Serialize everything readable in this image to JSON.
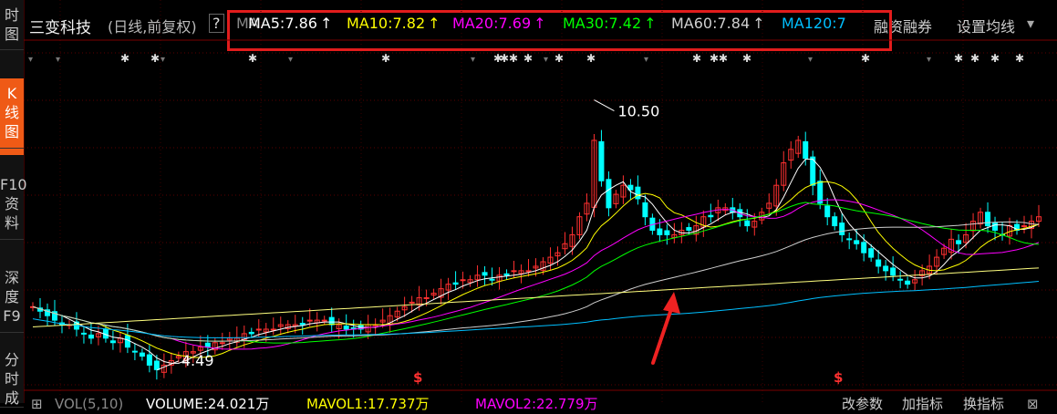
{
  "sidebar": {
    "tabs": [
      {
        "label": "时\n图",
        "active": false
      },
      {
        "label": "K\n线\n图",
        "active": true
      },
      {
        "label": "F10\n资\n料",
        "active": false
      },
      {
        "label": "深\n度\nF9",
        "active": false
      },
      {
        "label": "分\n时\n成",
        "active": false
      }
    ]
  },
  "header": {
    "stock_name": "三变科技",
    "period_info": "(日线,前复权)",
    "help_label": "?",
    "ma_label": "MA",
    "ma_values": [
      {
        "label": "MA5:7.86",
        "arrow": "↑",
        "color": "#ffffff"
      },
      {
        "label": "MA10:7.82",
        "arrow": "↑",
        "color": "#ffff00"
      },
      {
        "label": "MA20:7.69",
        "arrow": "↑",
        "color": "#ff00ff"
      },
      {
        "label": "MA30:7.42",
        "arrow": "↑",
        "color": "#00ff00"
      },
      {
        "label": "MA60:7.84",
        "arrow": "↑",
        "color": "#cfcfcf"
      },
      {
        "label": "MA120:7",
        "arrow": "",
        "color": "#00bfff"
      }
    ],
    "margin_trading": "融资融券",
    "set_ma": "设置均线",
    "dropdown_arrow": "▾"
  },
  "annotations": {
    "high_label": "10.50",
    "low_label": "4.49",
    "marker_symbol": "$"
  },
  "bottom_bar": {
    "vol_label": "VOL(5,10)",
    "volume_label": "VOLUME:24.021万",
    "mavol1_label": "MAVOL1:17.737万",
    "mavol2_label": "MAVOL2:22.779万",
    "param_label": "改参数",
    "add_indicator": "加指标",
    "switch_indicator": "换指标",
    "expand_icon": "⊞",
    "close_icon": "⊠"
  },
  "colors": {
    "up": "#ff3030",
    "down": "#00ffff",
    "ma5": "#ffffff",
    "ma10": "#ffff00",
    "ma20": "#ff00ff",
    "ma30": "#00ff00",
    "ma60": "#cfcfcf",
    "ma120": "#00bfff",
    "ma250": "#ffff7f",
    "highlight_box": "#e21c1c",
    "annotation_arrow": "#ee2222"
  },
  "chart_data": {
    "type": "candlestick",
    "y_min": 4.0,
    "y_max": 11.2,
    "high": 10.5,
    "low": 4.49,
    "ma_last": {
      "MA5": 7.86,
      "MA10": 7.82,
      "MA20": 7.69,
      "MA30": 7.42,
      "MA60": 7.84
    },
    "close_series": [
      5.9,
      5.8,
      5.7,
      5.6,
      5.5,
      5.5,
      5.4,
      5.3,
      5.2,
      5.3,
      5.2,
      5.1,
      5.2,
      5.0,
      4.9,
      4.8,
      4.6,
      4.5,
      4.6,
      4.7,
      4.8,
      4.9,
      4.9,
      5.0,
      5.0,
      5.1,
      5.1,
      5.2,
      5.2,
      5.3,
      5.3,
      5.4,
      5.4,
      5.4,
      5.5,
      5.5,
      5.5,
      5.5,
      5.6,
      5.6,
      5.6,
      5.5,
      5.5,
      5.4,
      5.4,
      5.4,
      5.5,
      5.5,
      5.6,
      5.7,
      5.8,
      5.9,
      6.0,
      6.1,
      6.1,
      6.2,
      6.3,
      6.4,
      6.4,
      6.5,
      6.5,
      6.6,
      6.6,
      6.5,
      6.6,
      6.6,
      6.7,
      6.7,
      6.7,
      6.8,
      6.9,
      7.0,
      7.1,
      7.3,
      7.5,
      7.9,
      8.2,
      9.6,
      8.7,
      8.1,
      8.4,
      8.6,
      8.5,
      8.3,
      7.9,
      7.6,
      7.5,
      7.5,
      7.5,
      7.6,
      7.6,
      7.7,
      7.9,
      7.9,
      8.1,
      8.1,
      8.0,
      7.9,
      7.7,
      7.8,
      8.0,
      8.2,
      8.6,
      9.1,
      9.4,
      9.6,
      9.2,
      8.6,
      8.2,
      7.9,
      7.7,
      7.5,
      7.4,
      7.3,
      7.1,
      7.0,
      6.8,
      6.7,
      6.6,
      6.5,
      6.4,
      6.5,
      6.7,
      6.8,
      7.0,
      7.2,
      7.4,
      7.3,
      7.5,
      7.8,
      8.0,
      7.7,
      7.6,
      7.5,
      7.7,
      7.6,
      7.7,
      7.8,
      7.9
    ]
  }
}
